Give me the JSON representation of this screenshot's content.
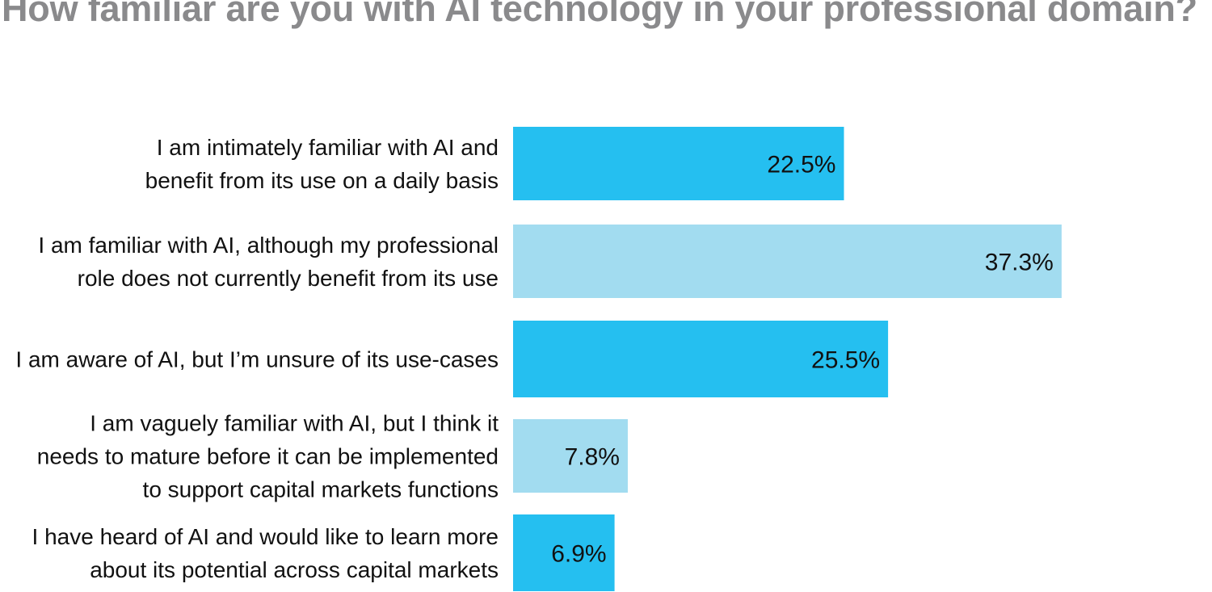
{
  "chart_data": {
    "type": "bar",
    "orientation": "horizontal",
    "title": "How familiar are you with AI technology in your professional domain?",
    "categories": [
      "I am intimately familiar with AI and benefit from its use on a daily basis",
      "I am familiar with AI, although my professional role does not currently benefit from its use",
      "I am aware of AI, but I’m unsure of its use-cases",
      "I am vaguely familiar with AI, but I think it needs to mature before it can be implemented to support capital markets functions",
      "I have heard of AI and would like to learn more about its potential across capital markets"
    ],
    "category_lines": [
      [
        "I am intimately familiar with AI and",
        "benefit from its use on a daily basis"
      ],
      [
        "I am familiar with AI, although my professional",
        "role does not currently benefit from its use"
      ],
      [
        "I am aware of AI, but I’m unsure of its use-cases"
      ],
      [
        "I am vaguely familiar with AI, but I think it",
        "needs to mature before it can be implemented",
        "to support capital markets functions"
      ],
      [
        "I have heard of AI and would like to learn more",
        "about its potential across capital markets"
      ]
    ],
    "values": [
      22.5,
      37.3,
      25.5,
      7.8,
      6.9
    ],
    "value_labels": [
      "22.5%",
      "37.3%",
      "25.5%",
      "7.8%",
      "6.9%"
    ],
    "unit": "%",
    "colors": [
      "#25bff0",
      "#a2dcf0",
      "#25bff0",
      "#a2dcf0",
      "#25bff0"
    ],
    "grid": false,
    "legend": "none"
  }
}
